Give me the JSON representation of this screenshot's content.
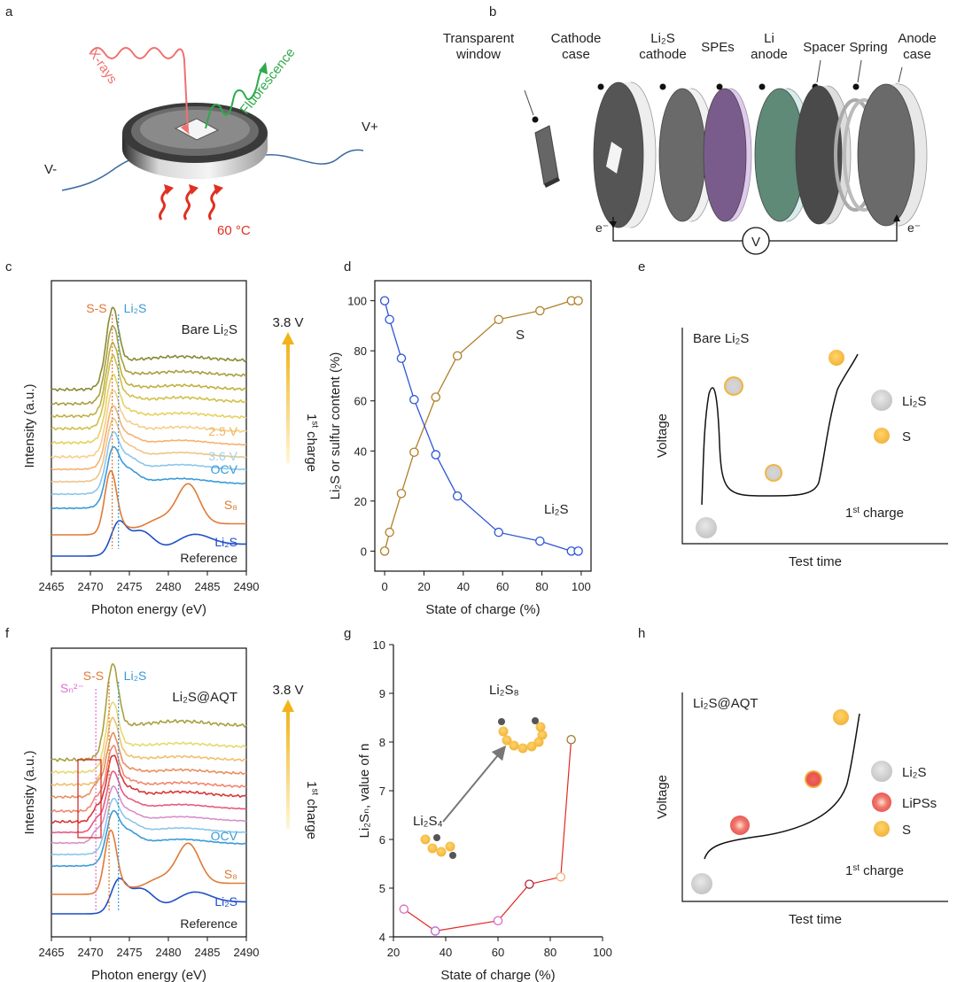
{
  "panel_letters": [
    "a",
    "b",
    "c",
    "d",
    "e",
    "f",
    "g",
    "h"
  ],
  "panel_a": {
    "xrays": "X-rays",
    "fluorescence": "Fluorescence",
    "v_minus": "V-",
    "v_plus": "V+",
    "temp": "60 °C",
    "colors": {
      "xray": "#f07070",
      "fluor": "#2eaa4a",
      "heat": "#e03020",
      "wire": "#3b6aa0"
    }
  },
  "panel_b": {
    "labels": [
      {
        "lines": [
          "Transparent",
          "window"
        ]
      },
      {
        "lines": [
          "Cathode",
          "case"
        ]
      },
      {
        "lines": [
          "Li₂S",
          "cathode"
        ]
      },
      {
        "lines": [
          "SPEs"
        ]
      },
      {
        "lines": [
          "Li",
          "anode"
        ]
      },
      {
        "lines": [
          "Spacer"
        ]
      },
      {
        "lines": [
          "Spring"
        ]
      },
      {
        "lines": [
          "Anode",
          "case"
        ]
      }
    ],
    "electron_left": "e⁻",
    "electron_right": "e⁻",
    "meter": "V",
    "colors": {
      "case": "#555555",
      "cathode": "#6a6a6a",
      "spe": "#7a5c8c",
      "anode": "#5f8a78",
      "spacer": "#4a4a4a",
      "spring": "#bbbbbb"
    }
  },
  "chart_data": [
    {
      "panel": "c",
      "type": "line",
      "xlabel": "Photon energy (eV)",
      "ylabel": "Intensity (a.u.)",
      "xlim": [
        2465,
        2490
      ],
      "xticks": [
        2465,
        2470,
        2475,
        2480,
        2485,
        2490
      ],
      "sample_label": "Bare Li₂S",
      "peak_labels": [
        "S-S",
        "Li₂S"
      ],
      "peak_lines_x": [
        2472.8,
        2473.6
      ],
      "voltage_label": "3.8 V",
      "charge_label": "1st charge",
      "reference_label": "Reference",
      "curve_labels": [
        {
          "text": "2.5 V",
          "color": "#f0b860"
        },
        {
          "text": "3.6 V",
          "color": "#9fd0ee"
        },
        {
          "text": "OCV",
          "color": "#3a9ad8"
        },
        {
          "text": "S₈",
          "color": "#e07a35"
        },
        {
          "text": "Li₂S",
          "color": "#1f4fc6"
        }
      ],
      "series_colors": [
        "#1f4fc6",
        "#e07a35",
        "#3a9ad8",
        "#8cc6ea",
        "#f0c488",
        "#f7b070",
        "#f5cf8a",
        "#e8d060",
        "#d0c04c",
        "#c0b040",
        "#a8a040",
        "#8a8a35"
      ]
    },
    {
      "panel": "d",
      "type": "line",
      "xlabel": "State of charge (%)",
      "ylabel": "Li₂S or sulfur content  (%)",
      "xlim": [
        -5,
        105
      ],
      "ylim": [
        -8,
        108
      ],
      "xticks": [
        0,
        20,
        40,
        60,
        80,
        100
      ],
      "yticks": [
        0,
        20,
        40,
        60,
        80,
        100
      ],
      "x": [
        0,
        2.5,
        8.5,
        15,
        26,
        37,
        58,
        79,
        95,
        98.5
      ],
      "series": [
        {
          "name": "S",
          "color": "#b0802a",
          "values": [
            0,
            7.5,
            23,
            39.5,
            61.5,
            78,
            92.5,
            96,
            100,
            100
          ]
        },
        {
          "name": "Li₂S",
          "color": "#2d55d6",
          "values": [
            100,
            92.5,
            77,
            60.5,
            38.5,
            22,
            7.5,
            4,
            0,
            0
          ]
        }
      ]
    },
    {
      "panel": "e",
      "type": "line",
      "xlabel": "Test time",
      "ylabel": "Voltage",
      "sample_label": "Bare Li₂S",
      "charge_label": "1st charge",
      "legend": [
        "Li₂S",
        "S"
      ]
    },
    {
      "panel": "f",
      "type": "line",
      "xlabel": "Photon energy (eV)",
      "ylabel": "Intensity (a.u.)",
      "xlim": [
        2465,
        2490
      ],
      "xticks": [
        2465,
        2470,
        2475,
        2480,
        2485,
        2490
      ],
      "sample_label": "Li₂S@AQT",
      "peak_labels": [
        "S-S",
        "Li₂S",
        "Sₙ²⁻"
      ],
      "peak_lines_x": [
        2472.4,
        2473.6,
        2470.7
      ],
      "voltage_label": "3.8 V",
      "charge_label": "1st charge",
      "reference_label": "Reference",
      "curve_labels": [
        {
          "text": "OCV",
          "color": "#3a9ad8"
        },
        {
          "text": "S₈",
          "color": "#e07a35"
        },
        {
          "text": "Li₂S",
          "color": "#1f4fc6"
        }
      ],
      "series_colors": [
        "#1f4fc6",
        "#e07a35",
        "#3a9ad8",
        "#8cc6ea",
        "#d890c8",
        "#e85a80",
        "#d83838",
        "#f08870",
        "#e89060",
        "#f0c070",
        "#e8d870",
        "#a8a040"
      ]
    },
    {
      "panel": "g",
      "type": "line",
      "xlabel": "State of charge (%)",
      "ylabel": "Li₂Sₙ, value of n",
      "xlim": [
        20,
        100
      ],
      "ylim": [
        4,
        10
      ],
      "xticks": [
        20,
        40,
        60,
        80,
        100
      ],
      "yticks": [
        4,
        5,
        6,
        7,
        8,
        9,
        10
      ],
      "x": [
        24,
        36,
        60,
        72,
        84,
        88
      ],
      "series": [
        {
          "name": "",
          "color": "#e02a20",
          "values": [
            4.57,
            4.12,
            4.33,
            5.08,
            5.23,
            8.05
          ]
        }
      ],
      "marker_colors": [
        "#d868c8",
        "#c060d8",
        "#d868c8",
        "#b02040",
        "#f0b070",
        "#a07830"
      ],
      "annotations": [
        "Li₂S₄",
        "Li₂S₈"
      ]
    },
    {
      "panel": "h",
      "type": "line",
      "xlabel": "Test time",
      "ylabel": "Voltage",
      "sample_label": "Li₂S@AQT",
      "charge_label": "1st charge",
      "legend": [
        "Li₂S",
        "LiPSs",
        "S"
      ]
    }
  ]
}
